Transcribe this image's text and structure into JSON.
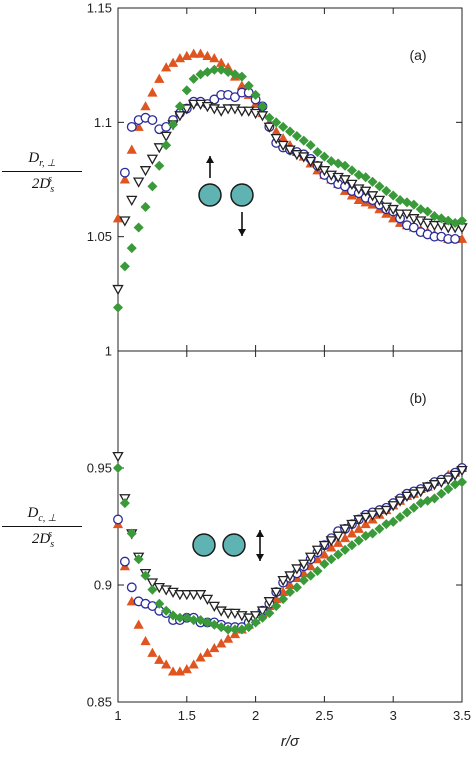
{
  "chart_data": [
    {
      "type": "scatter",
      "panel_label": "(a)",
      "ylabel_numerator": "D",
      "ylabel_numerator_sub": "r, ⊥",
      "ylabel_denominator": "2D",
      "ylabel_denominator_sub": "s",
      "ylabel_denominator_sup": "s",
      "xlim": [
        1,
        3.5
      ],
      "ylim": [
        1,
        1.15
      ],
      "yticks": [
        "1",
        "1.05",
        "1.1",
        "1.15"
      ],
      "inset": "two-spheres-perpendicular",
      "series": [
        {
          "marker": "triangle-up",
          "color": "#e0541f",
          "filled": true,
          "x": [
            1.0,
            1.05,
            1.1,
            1.15,
            1.2,
            1.25,
            1.3,
            1.35,
            1.4,
            1.45,
            1.5,
            1.55,
            1.6,
            1.65,
            1.7,
            1.75,
            1.8,
            1.85,
            1.9,
            1.95,
            2.0,
            2.05,
            2.1,
            2.15,
            2.2,
            2.25,
            2.3,
            2.35,
            2.4,
            2.45,
            2.5,
            2.55,
            2.6,
            2.65,
            2.7,
            2.75,
            2.8,
            2.85,
            2.9,
            2.95,
            3.0,
            3.05,
            3.1,
            3.15,
            3.2,
            3.25,
            3.3,
            3.35,
            3.4,
            3.45,
            3.5
          ],
          "y": [
            1.058,
            1.075,
            1.088,
            1.098,
            1.107,
            1.113,
            1.119,
            1.124,
            1.126,
            1.128,
            1.129,
            1.13,
            1.13,
            1.129,
            1.128,
            1.126,
            1.124,
            1.12,
            1.116,
            1.112,
            1.108,
            1.104,
            1.1,
            1.096,
            1.093,
            1.09,
            1.087,
            1.085,
            1.082,
            1.079,
            1.077,
            1.075,
            1.073,
            1.07,
            1.068,
            1.066,
            1.065,
            1.064,
            1.062,
            1.06,
            1.058,
            1.056,
            1.055,
            1.054,
            1.053,
            1.052,
            1.051,
            1.05,
            1.049,
            1.049,
            1.049
          ]
        },
        {
          "marker": "circle",
          "color": "#2b2b9a",
          "filled": false,
          "x": [
            1.05,
            1.1,
            1.15,
            1.2,
            1.25,
            1.3,
            1.35,
            1.4,
            1.45,
            1.5,
            1.55,
            1.6,
            1.65,
            1.7,
            1.75,
            1.8,
            1.85,
            1.9,
            1.95,
            2.0,
            2.05,
            2.1,
            2.15,
            2.2,
            2.25,
            2.3,
            2.35,
            2.4,
            2.45,
            2.5,
            2.55,
            2.6,
            2.65,
            2.7,
            2.75,
            2.8,
            2.85,
            2.9,
            2.95,
            3.0,
            3.05,
            3.1,
            3.15,
            3.2,
            3.25,
            3.3,
            3.35,
            3.4,
            3.45
          ],
          "y": [
            1.078,
            1.098,
            1.101,
            1.102,
            1.101,
            1.097,
            1.098,
            1.101,
            1.104,
            1.106,
            1.109,
            1.109,
            1.108,
            1.11,
            1.112,
            1.112,
            1.111,
            1.113,
            1.113,
            1.11,
            1.107,
            1.098,
            1.091,
            1.089,
            1.088,
            1.087,
            1.086,
            1.084,
            1.081,
            1.077,
            1.075,
            1.073,
            1.072,
            1.07,
            1.069,
            1.067,
            1.066,
            1.064,
            1.062,
            1.061,
            1.058,
            1.055,
            1.054,
            1.052,
            1.051,
            1.05,
            1.05,
            1.049,
            1.049
          ]
        },
        {
          "marker": "triangle-down",
          "color": "#222222",
          "filled": false,
          "x": [
            1.0,
            1.05,
            1.1,
            1.15,
            1.2,
            1.25,
            1.3,
            1.35,
            1.4,
            1.45,
            1.5,
            1.55,
            1.6,
            1.65,
            1.7,
            1.75,
            1.8,
            1.85,
            1.9,
            1.95,
            2.0,
            2.05,
            2.1,
            2.15,
            2.2,
            2.25,
            2.3,
            2.35,
            2.4,
            2.45,
            2.5,
            2.55,
            2.6,
            2.65,
            2.7,
            2.75,
            2.8,
            2.85,
            2.9,
            2.95,
            3.0,
            3.05,
            3.1,
            3.15,
            3.2,
            3.25,
            3.3,
            3.35,
            3.4,
            3.45,
            3.5
          ],
          "y": [
            1.027,
            1.057,
            1.066,
            1.074,
            1.079,
            1.084,
            1.089,
            1.094,
            1.099,
            1.103,
            1.106,
            1.108,
            1.108,
            1.107,
            1.106,
            1.105,
            1.106,
            1.106,
            1.105,
            1.105,
            1.104,
            1.103,
            1.098,
            1.093,
            1.09,
            1.088,
            1.086,
            1.085,
            1.083,
            1.081,
            1.079,
            1.077,
            1.076,
            1.075,
            1.073,
            1.071,
            1.07,
            1.068,
            1.066,
            1.063,
            1.062,
            1.06,
            1.06,
            1.058,
            1.057,
            1.056,
            1.055,
            1.055,
            1.054,
            1.054,
            1.054
          ]
        },
        {
          "marker": "diamond",
          "color": "#3a9a3a",
          "filled": true,
          "x": [
            1.0,
            1.05,
            1.1,
            1.15,
            1.2,
            1.25,
            1.3,
            1.35,
            1.4,
            1.45,
            1.5,
            1.55,
            1.6,
            1.65,
            1.7,
            1.75,
            1.8,
            1.85,
            1.9,
            1.95,
            2.0,
            2.05,
            2.1,
            2.15,
            2.2,
            2.25,
            2.3,
            2.35,
            2.4,
            2.45,
            2.5,
            2.55,
            2.6,
            2.65,
            2.7,
            2.75,
            2.8,
            2.85,
            2.9,
            2.95,
            3.0,
            3.05,
            3.1,
            3.15,
            3.2,
            3.25,
            3.3,
            3.35,
            3.4,
            3.45,
            3.5
          ],
          "y": [
            1.019,
            1.037,
            1.045,
            1.054,
            1.063,
            1.072,
            1.081,
            1.09,
            1.099,
            1.107,
            1.114,
            1.119,
            1.121,
            1.122,
            1.123,
            1.123,
            1.122,
            1.121,
            1.12,
            1.116,
            1.112,
            1.107,
            1.102,
            1.1,
            1.098,
            1.096,
            1.094,
            1.092,
            1.09,
            1.087,
            1.085,
            1.083,
            1.082,
            1.081,
            1.079,
            1.077,
            1.076,
            1.074,
            1.072,
            1.07,
            1.068,
            1.066,
            1.065,
            1.064,
            1.062,
            1.061,
            1.059,
            1.058,
            1.057,
            1.056,
            1.057
          ]
        }
      ]
    },
    {
      "type": "scatter",
      "panel_label": "(b)",
      "ylabel_numerator": "D",
      "ylabel_numerator_sub": "c, ⊥",
      "ylabel_denominator": "2D",
      "ylabel_denominator_sub": "s",
      "ylabel_denominator_sup": "s",
      "xlabel": "r/σ",
      "xlim": [
        1,
        3.5
      ],
      "ylim": [
        0.85,
        1.0
      ],
      "xticks": [
        "1",
        "1.5",
        "2",
        "2.5",
        "3",
        "3.5"
      ],
      "yticks": [
        "0.85",
        "0.9",
        "0.95"
      ],
      "inset": "two-spheres-parallel",
      "series": [
        {
          "marker": "triangle-up",
          "color": "#e0541f",
          "filled": true,
          "x": [
            1.0,
            1.05,
            1.1,
            1.15,
            1.2,
            1.25,
            1.3,
            1.35,
            1.4,
            1.45,
            1.5,
            1.55,
            1.6,
            1.65,
            1.7,
            1.75,
            1.8,
            1.85,
            1.9,
            1.95,
            2.0,
            2.05,
            2.1,
            2.15,
            2.2,
            2.25,
            2.3,
            2.35,
            2.4,
            2.45,
            2.5,
            2.55,
            2.6,
            2.65,
            2.7,
            2.75,
            2.8,
            2.85,
            2.9,
            2.95,
            3.0,
            3.05,
            3.1,
            3.15,
            3.2,
            3.25,
            3.3,
            3.35,
            3.4,
            3.45,
            3.5
          ],
          "y": [
            0.926,
            0.908,
            0.893,
            0.883,
            0.876,
            0.871,
            0.868,
            0.866,
            0.863,
            0.863,
            0.864,
            0.866,
            0.869,
            0.871,
            0.873,
            0.875,
            0.877,
            0.879,
            0.881,
            0.883,
            0.885,
            0.888,
            0.891,
            0.894,
            0.897,
            0.9,
            0.903,
            0.905,
            0.908,
            0.911,
            0.913,
            0.916,
            0.918,
            0.92,
            0.922,
            0.924,
            0.926,
            0.928,
            0.93,
            0.932,
            0.934,
            0.936,
            0.938,
            0.939,
            0.941,
            0.942,
            0.944,
            0.945,
            0.947,
            0.948,
            0.95
          ]
        },
        {
          "marker": "circle",
          "color": "#2b2b9a",
          "filled": false,
          "x": [
            1.0,
            1.05,
            1.1,
            1.15,
            1.2,
            1.25,
            1.3,
            1.35,
            1.4,
            1.45,
            1.5,
            1.55,
            1.6,
            1.65,
            1.7,
            1.75,
            1.8,
            1.85,
            1.9,
            1.95,
            2.0,
            2.05,
            2.1,
            2.15,
            2.2,
            2.25,
            2.3,
            2.35,
            2.4,
            2.45,
            2.5,
            2.55,
            2.6,
            2.65,
            2.7,
            2.75,
            2.8,
            2.85,
            2.9,
            2.95,
            3.0,
            3.05,
            3.1,
            3.15,
            3.2,
            3.25,
            3.3,
            3.35,
            3.4,
            3.45,
            3.5
          ],
          "y": [
            0.928,
            0.91,
            0.899,
            0.893,
            0.892,
            0.891,
            0.889,
            0.888,
            0.885,
            0.885,
            0.886,
            0.886,
            0.884,
            0.884,
            0.884,
            0.883,
            0.882,
            0.882,
            0.882,
            0.884,
            0.886,
            0.889,
            0.892,
            0.897,
            0.901,
            0.903,
            0.905,
            0.908,
            0.911,
            0.914,
            0.917,
            0.92,
            0.923,
            0.924,
            0.926,
            0.928,
            0.93,
            0.931,
            0.932,
            0.933,
            0.935,
            0.937,
            0.939,
            0.94,
            0.941,
            0.942,
            0.944,
            0.945,
            0.946,
            0.948,
            0.95
          ]
        },
        {
          "marker": "triangle-down",
          "color": "#222222",
          "filled": false,
          "x": [
            1.0,
            1.05,
            1.1,
            1.15,
            1.2,
            1.25,
            1.3,
            1.35,
            1.4,
            1.45,
            1.5,
            1.55,
            1.6,
            1.65,
            1.7,
            1.75,
            1.8,
            1.85,
            1.9,
            1.95,
            2.0,
            2.05,
            2.1,
            2.15,
            2.2,
            2.25,
            2.3,
            2.35,
            2.4,
            2.45,
            2.5,
            2.55,
            2.6,
            2.65,
            2.7,
            2.75,
            2.8,
            2.85,
            2.9,
            2.95,
            3.0,
            3.05,
            3.1,
            3.15,
            3.2,
            3.25,
            3.3,
            3.35,
            3.4,
            3.45,
            3.5
          ],
          "y": [
            0.955,
            0.937,
            0.922,
            0.912,
            0.905,
            0.901,
            0.899,
            0.898,
            0.897,
            0.896,
            0.896,
            0.896,
            0.896,
            0.894,
            0.891,
            0.889,
            0.888,
            0.888,
            0.887,
            0.886,
            0.887,
            0.889,
            0.893,
            0.897,
            0.902,
            0.904,
            0.907,
            0.909,
            0.912,
            0.915,
            0.917,
            0.919,
            0.921,
            0.924,
            0.926,
            0.928,
            0.929,
            0.93,
            0.931,
            0.932,
            0.934,
            0.936,
            0.938,
            0.939,
            0.94,
            0.942,
            0.943,
            0.944,
            0.945,
            0.947,
            0.949
          ]
        },
        {
          "marker": "diamond",
          "color": "#3a9a3a",
          "filled": true,
          "x": [
            1.0,
            1.05,
            1.1,
            1.15,
            1.2,
            1.25,
            1.3,
            1.35,
            1.4,
            1.45,
            1.5,
            1.55,
            1.6,
            1.65,
            1.7,
            1.75,
            1.8,
            1.85,
            1.9,
            1.95,
            2.0,
            2.05,
            2.1,
            2.15,
            2.2,
            2.25,
            2.3,
            2.35,
            2.4,
            2.45,
            2.5,
            2.55,
            2.6,
            2.65,
            2.7,
            2.75,
            2.8,
            2.85,
            2.9,
            2.95,
            3.0,
            3.05,
            3.1,
            3.15,
            3.2,
            3.25,
            3.3,
            3.35,
            3.4,
            3.45,
            3.5
          ],
          "y": [
            0.95,
            0.935,
            0.922,
            0.911,
            0.904,
            0.898,
            0.892,
            0.889,
            0.887,
            0.886,
            0.886,
            0.885,
            0.885,
            0.884,
            0.883,
            0.882,
            0.881,
            0.881,
            0.881,
            0.882,
            0.884,
            0.886,
            0.888,
            0.891,
            0.894,
            0.897,
            0.899,
            0.902,
            0.904,
            0.906,
            0.909,
            0.911,
            0.913,
            0.915,
            0.917,
            0.919,
            0.921,
            0.922,
            0.924,
            0.926,
            0.927,
            0.929,
            0.931,
            0.933,
            0.935,
            0.936,
            0.937,
            0.939,
            0.941,
            0.943,
            0.944
          ]
        }
      ]
    }
  ],
  "colors": {
    "sphere_fill": "#5fb3b3",
    "axis": "#222222"
  }
}
